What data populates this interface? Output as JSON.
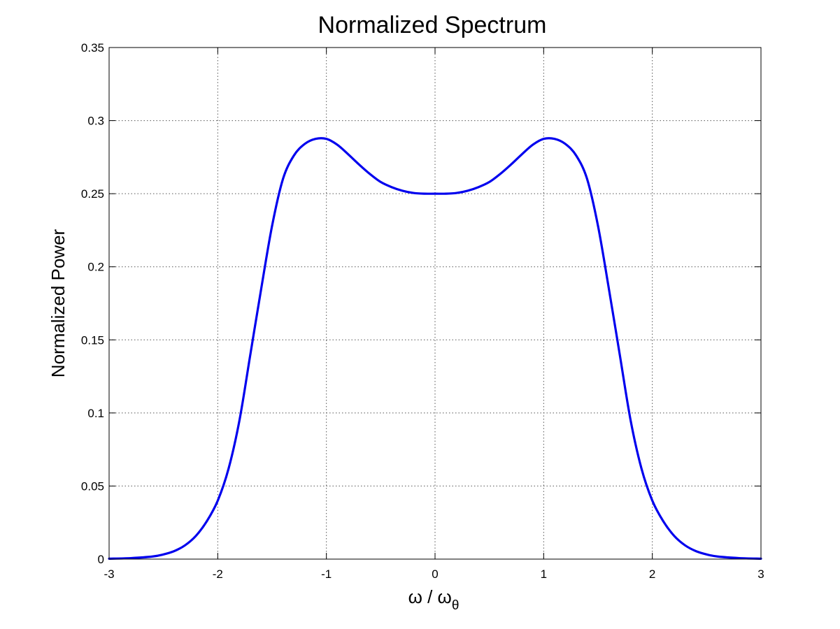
{
  "chart_data": {
    "type": "line",
    "title": "Normalized Spectrum",
    "xlabel": "ω / ω",
    "xlabel_subscript": "θ",
    "ylabel": "Normalized Power",
    "xlim": [
      -3,
      3
    ],
    "ylim": [
      0,
      0.35
    ],
    "xticks": [
      -3,
      -2,
      -1,
      0,
      1,
      2,
      3
    ],
    "xtick_labels": [
      "-3",
      "-2",
      "-1",
      "0",
      "1",
      "2",
      "3"
    ],
    "yticks": [
      0,
      0.05,
      0.1,
      0.15,
      0.2,
      0.25,
      0.3,
      0.35
    ],
    "ytick_labels": [
      "0",
      "0.05",
      "0.1",
      "0.15",
      "0.2",
      "0.25",
      "0.3",
      "0.35"
    ],
    "grid": true,
    "series": [
      {
        "color": "#0000ee",
        "x": [
          -3.0,
          -2.8,
          -2.6,
          -2.5,
          -2.4,
          -2.3,
          -2.2,
          -2.1,
          -2.0,
          -1.9,
          -1.8,
          -1.7,
          -1.6,
          -1.5,
          -1.4,
          -1.3,
          -1.2,
          -1.1,
          -1.0,
          -0.9,
          -0.8,
          -0.7,
          -0.6,
          -0.5,
          -0.4,
          -0.3,
          -0.2,
          -0.1,
          0.0,
          0.1,
          0.2,
          0.3,
          0.4,
          0.5,
          0.6,
          0.7,
          0.8,
          0.9,
          1.0,
          1.1,
          1.2,
          1.3,
          1.4,
          1.5,
          1.6,
          1.7,
          1.8,
          1.9,
          2.0,
          2.1,
          2.2,
          2.3,
          2.4,
          2.5,
          2.6,
          2.8,
          3.0
        ],
        "y": [
          0.0003,
          0.0007,
          0.0018,
          0.0032,
          0.0055,
          0.0095,
          0.016,
          0.026,
          0.04,
          0.062,
          0.095,
          0.14,
          0.185,
          0.228,
          0.26,
          0.276,
          0.284,
          0.2875,
          0.2875,
          0.2835,
          0.277,
          0.27,
          0.2635,
          0.258,
          0.2545,
          0.252,
          0.2505,
          0.25,
          0.25,
          0.25,
          0.2505,
          0.252,
          0.2545,
          0.258,
          0.2635,
          0.27,
          0.277,
          0.2835,
          0.2875,
          0.2875,
          0.284,
          0.276,
          0.26,
          0.228,
          0.185,
          0.14,
          0.095,
          0.062,
          0.04,
          0.026,
          0.016,
          0.0095,
          0.0055,
          0.0032,
          0.0018,
          0.0007,
          0.0003
        ]
      }
    ]
  }
}
